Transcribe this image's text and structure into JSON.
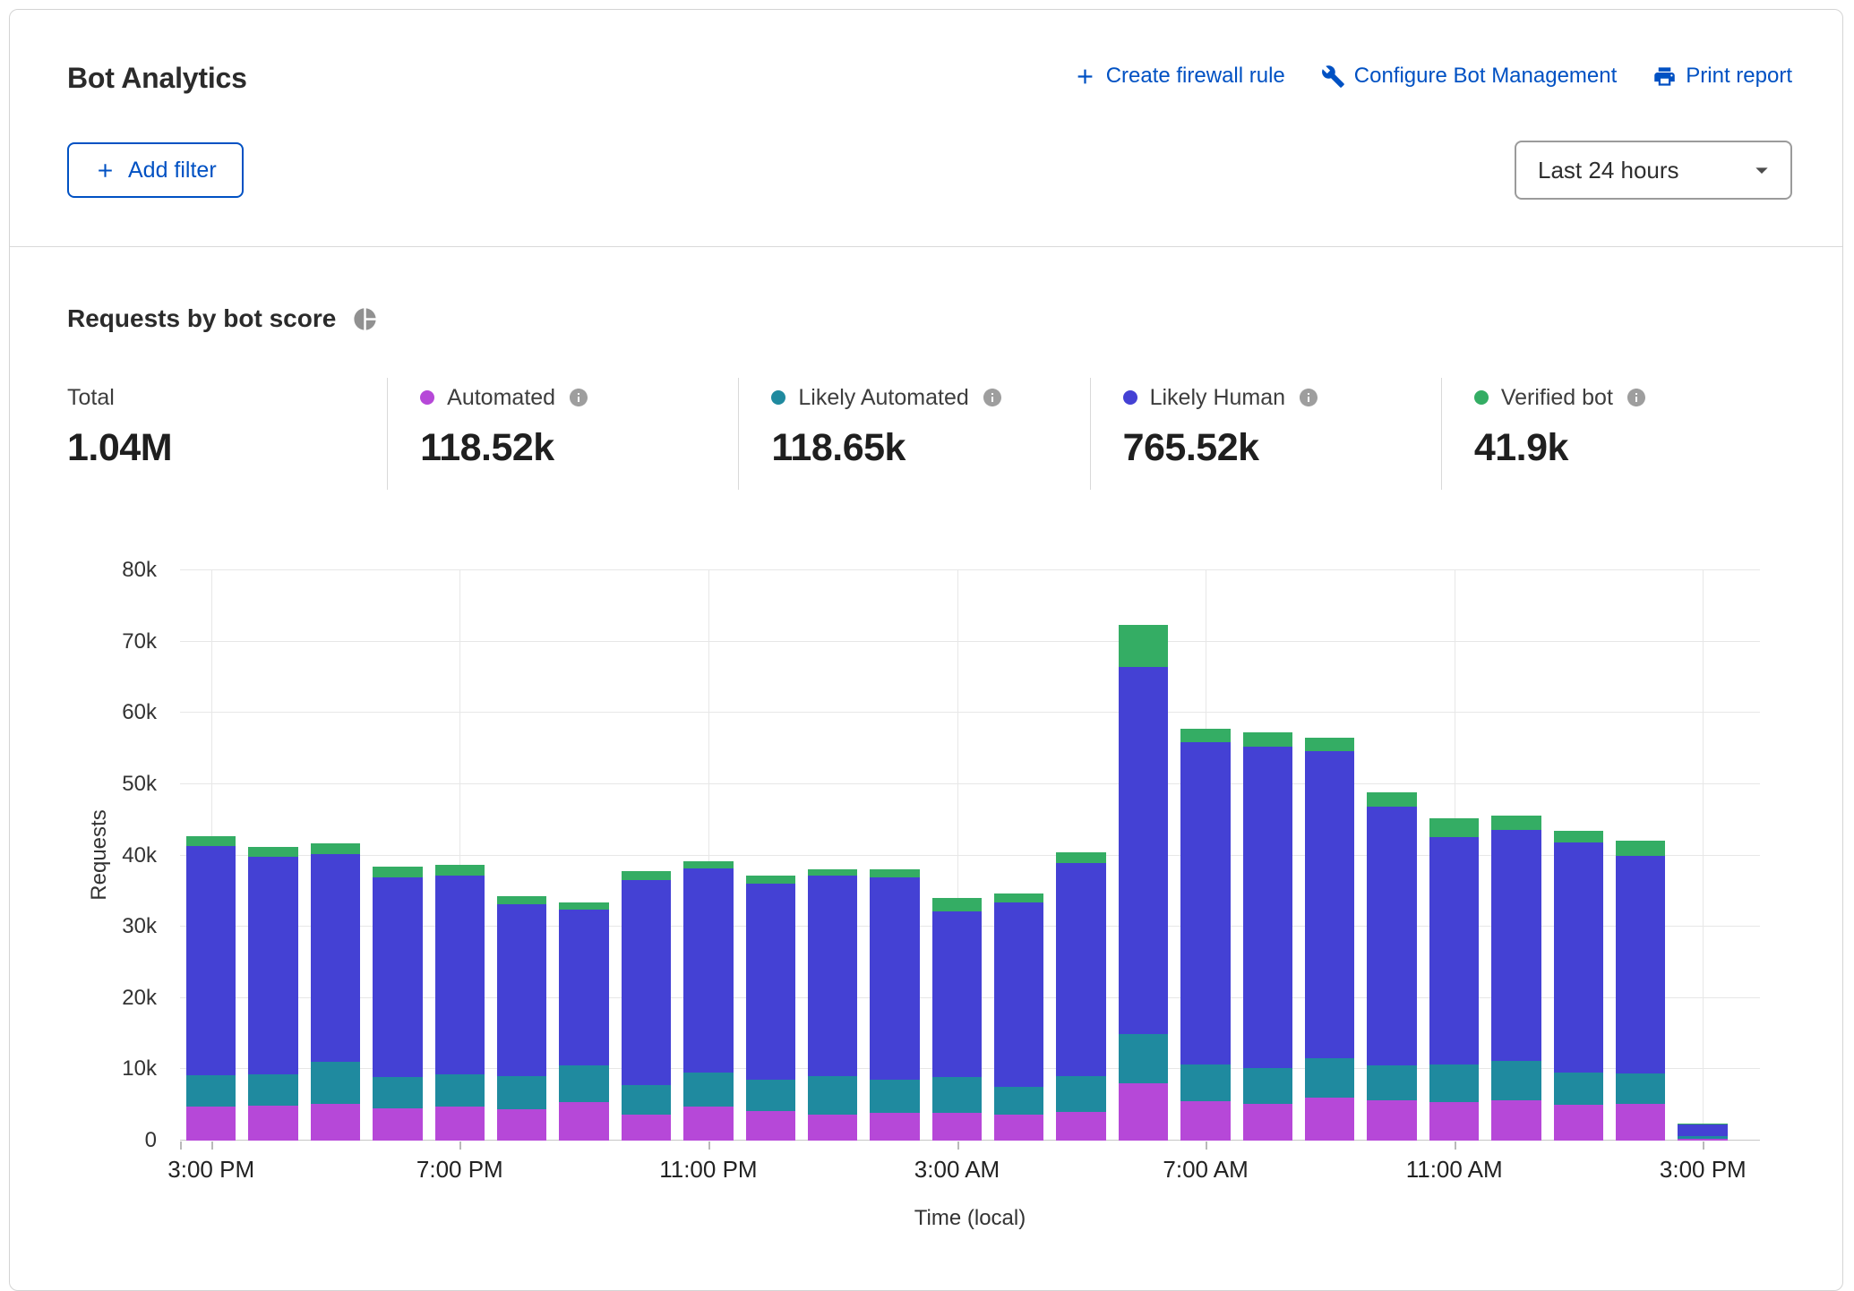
{
  "header": {
    "title": "Bot Analytics",
    "actions": [
      {
        "label": "Create firewall rule",
        "icon": "plus-icon"
      },
      {
        "label": "Configure Bot Management",
        "icon": "wrench-icon"
      },
      {
        "label": "Print report",
        "icon": "printer-icon"
      }
    ],
    "add_filter_label": "Add filter",
    "time_range": "Last 24 hours"
  },
  "section": {
    "title": "Requests by bot score"
  },
  "stats": {
    "total": {
      "label": "Total",
      "value": "1.04M"
    },
    "items": [
      {
        "label": "Automated",
        "value": "118.52k"
      },
      {
        "label": "Likely Automated",
        "value": "118.65k"
      },
      {
        "label": "Likely Human",
        "value": "765.52k"
      },
      {
        "label": "Verified bot",
        "value": "41.9k"
      }
    ]
  },
  "colors": {
    "link_blue": "#0051c3",
    "automated": "#b648d8",
    "likely_automated": "#1f8a9f",
    "likely_human": "#4441d4",
    "verified_bot": "#34ad64"
  },
  "chart_data": {
    "type": "bar",
    "stacked": true,
    "title": "Requests by bot score",
    "xlabel": "Time (local)",
    "ylabel": "Requests",
    "ylim": [
      0,
      80000
    ],
    "grid": true,
    "yticks": [
      "0",
      "10k",
      "20k",
      "30k",
      "40k",
      "50k",
      "60k",
      "70k",
      "80k"
    ],
    "x": [
      "3:00 PM",
      "4:00 PM",
      "5:00 PM",
      "6:00 PM",
      "7:00 PM",
      "8:00 PM",
      "9:00 PM",
      "10:00 PM",
      "11:00 PM",
      "12:00 AM",
      "1:00 AM",
      "2:00 AM",
      "3:00 AM",
      "4:00 AM",
      "5:00 AM",
      "6:00 AM",
      "7:00 AM",
      "8:00 AM",
      "9:00 AM",
      "10:00 AM",
      "11:00 AM",
      "12:00 PM",
      "1:00 PM",
      "2:00 PM",
      "3:00 PM"
    ],
    "x_tick_every": 4,
    "series": [
      {
        "name": "Automated",
        "color": "#b648d8",
        "values": [
          4800,
          4900,
          5100,
          4500,
          4800,
          4400,
          5400,
          3600,
          4800,
          4200,
          3700,
          3900,
          3900,
          3700,
          4000,
          8000,
          5500,
          5200,
          6000,
          5600,
          5400,
          5600,
          5000,
          5100,
          300
        ]
      },
      {
        "name": "Likely Automated",
        "color": "#1f8a9f",
        "values": [
          4400,
          4400,
          5900,
          4400,
          4500,
          4600,
          5100,
          4200,
          4700,
          4400,
          5300,
          4700,
          5000,
          3900,
          5000,
          7000,
          5200,
          5000,
          5500,
          4900,
          5300,
          5600,
          4600,
          4300,
          300
        ]
      },
      {
        "name": "Likely Human",
        "color": "#4441d4",
        "values": [
          32100,
          30500,
          29200,
          28000,
          27900,
          24200,
          21900,
          28700,
          28700,
          27400,
          28200,
          28300,
          23300,
          25800,
          29900,
          51500,
          45200,
          45100,
          43100,
          36400,
          31900,
          32400,
          32200,
          30600,
          1700
        ]
      },
      {
        "name": "Verified bot",
        "color": "#34ad64",
        "values": [
          1400,
          1400,
          1500,
          1500,
          1500,
          1100,
          1000,
          1300,
          1000,
          1200,
          900,
          1100,
          1900,
          1300,
          1600,
          5900,
          1900,
          2000,
          1900,
          1900,
          2600,
          2000,
          1600,
          2100,
          100
        ]
      }
    ]
  }
}
